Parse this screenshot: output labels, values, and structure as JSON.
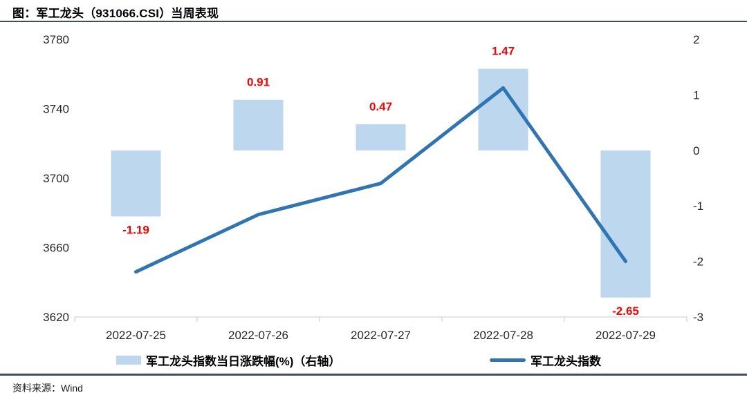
{
  "header": {
    "title": "图：军工龙头（931066.CSI）当周表现"
  },
  "chart_data": {
    "type": "combo-bar-line",
    "categories": [
      "2022-07-25",
      "2022-07-26",
      "2022-07-27",
      "2022-07-28",
      "2022-07-29"
    ],
    "series": [
      {
        "name": "军工龙头指数当日涨跌幅(%)（右轴）",
        "type": "bar",
        "axis": "right",
        "values": [
          -1.19,
          0.91,
          0.47,
          1.47,
          -2.65
        ],
        "data_labels": [
          "-1.19",
          "0.91",
          "0.47",
          "1.47",
          "-2.65"
        ],
        "color": "#BDD7EE",
        "label_color": "#FF0000"
      },
      {
        "name": "军工龙头指数",
        "type": "line",
        "axis": "left",
        "values": [
          3646,
          3679,
          3697,
          3752,
          3652
        ],
        "color": "#2E75B6"
      }
    ],
    "left_axis": {
      "min": 3620,
      "max": 3780,
      "ticks": [
        3780,
        3740,
        3700,
        3660,
        3620
      ]
    },
    "right_axis": {
      "min": -3,
      "max": 2,
      "ticks": [
        2,
        1,
        0,
        -1,
        -2,
        -3
      ]
    },
    "legend_position": "bottom",
    "grid": false
  },
  "footer": {
    "source": "资料来源：Wind"
  },
  "colors": {
    "bar_fill": "#BDD7EE",
    "line_stroke": "#2E75B6",
    "data_label": "#FF0000",
    "axis_line": "#C9C9C9",
    "tick_text": "#262626",
    "rule": "#3E4E5C"
  }
}
